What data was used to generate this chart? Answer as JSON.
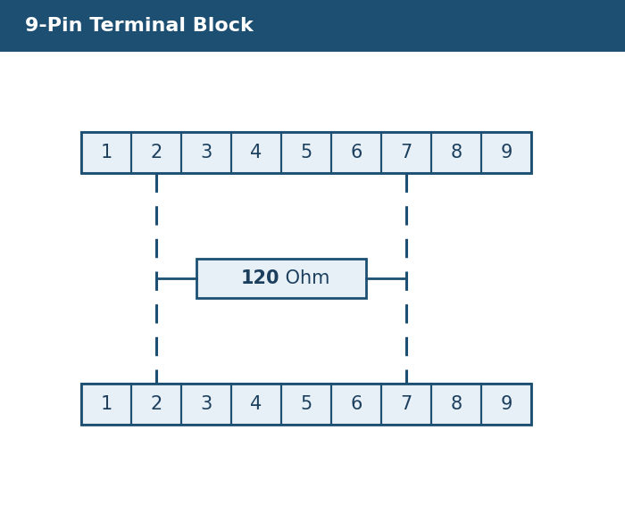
{
  "title": "9-Pin Terminal Block",
  "title_bg_color": "#1c4f72",
  "title_text_color": "#ffffff",
  "bg_color": "#ffffff",
  "content_bg_color": "#f7f9fc",
  "pin_count": 9,
  "pins": [
    1,
    2,
    3,
    4,
    5,
    6,
    7,
    8,
    9
  ],
  "box_fill_color": "#e8f0f7",
  "box_edge_color": "#1c4f72",
  "box_text_color": "#1c3f5e",
  "dashed_line_color": "#1c4f72",
  "resistor_box_fill": "#e8f0f7",
  "resistor_box_edge": "#1c4f72",
  "resistor_bold_text": "120",
  "resistor_normal_text": " Ohm",
  "resistor_text_color": "#1c3f5e",
  "title_fontsize": 16,
  "pin_fontsize": 15,
  "resistor_fontsize": 14,
  "fig_width": 7.0,
  "fig_height": 5.84,
  "dpi": 100
}
